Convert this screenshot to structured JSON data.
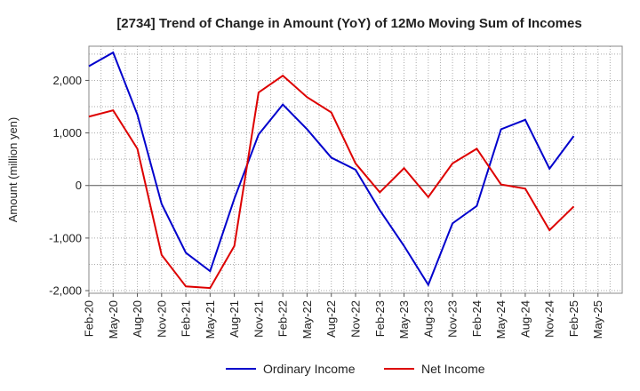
{
  "chart_data": {
    "type": "line",
    "title": "[2734]  Trend of Change in Amount (YoY) of 12Mo Moving Sum of Incomes",
    "xlabel": "",
    "ylabel": "Amount (million yen)",
    "categories": [
      "Feb-20",
      "May-20",
      "Aug-20",
      "Nov-20",
      "Feb-21",
      "May-21",
      "Aug-21",
      "Nov-21",
      "Feb-22",
      "May-22",
      "Aug-22",
      "Nov-22",
      "Feb-23",
      "May-23",
      "Aug-23",
      "Nov-23",
      "Feb-24",
      "May-24",
      "Aug-24",
      "Nov-24",
      "Feb-25",
      "May-25"
    ],
    "ylim": [
      -2050,
      2650
    ],
    "yticks": [
      -2000,
      -1000,
      0,
      1000,
      2000
    ],
    "ytick_labels": [
      "-2,000",
      "-1,000",
      "0",
      "1,000",
      "2,000"
    ],
    "grid": true,
    "legend_position": "bottom-center",
    "series": [
      {
        "name": "Ordinary Income",
        "color": "#0000cc",
        "values": [
          2270,
          2530,
          1350,
          -350,
          -1280,
          -1630,
          -250,
          970,
          1540,
          1070,
          530,
          300,
          -470,
          -1150,
          -1890,
          -720,
          -390,
          1070,
          1250,
          320,
          940,
          null
        ]
      },
      {
        "name": "Net Income",
        "color": "#dd0000",
        "values": [
          1310,
          1430,
          700,
          -1320,
          -1920,
          -1950,
          -1150,
          1770,
          2090,
          1680,
          1390,
          420,
          -130,
          330,
          -220,
          420,
          700,
          20,
          -60,
          -850,
          -400,
          null
        ]
      }
    ]
  }
}
